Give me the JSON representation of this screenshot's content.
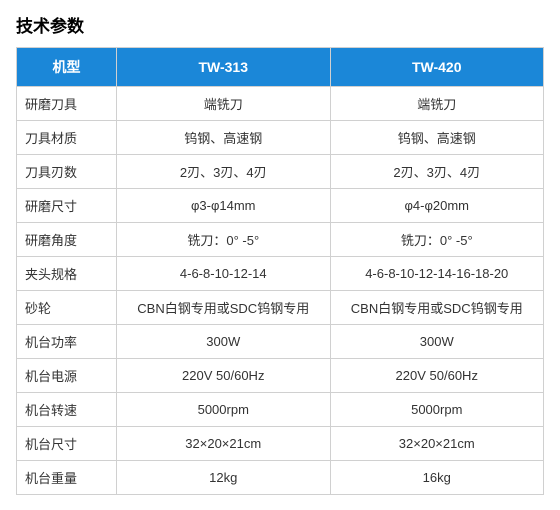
{
  "title": "技术参数",
  "header_bg": "#1b87d8",
  "header_fg": "#ffffff",
  "border_color": "#d0d0d0",
  "columns": [
    "机型",
    "TW-313",
    "TW-420"
  ],
  "rows": [
    {
      "label": "研磨刀具",
      "v1": "端铣刀",
      "v2": "端铣刀"
    },
    {
      "label": "刀具材质",
      "v1": "钨钢、高速钢",
      "v2": "钨钢、高速钢"
    },
    {
      "label": "刀具刃数",
      "v1": "2刃、3刃、4刃",
      "v2": "2刃、3刃、4刃"
    },
    {
      "label": "研磨尺寸",
      "v1": "φ3-φ14mm",
      "v2": "φ4-φ20mm"
    },
    {
      "label": "研磨角度",
      "v1": "铣刀：0° -5°",
      "v2": "铣刀：0° -5°"
    },
    {
      "label": "夹头规格",
      "v1": "4-6-8-10-12-14",
      "v2": "4-6-8-10-12-14-16-18-20"
    },
    {
      "label": "砂轮",
      "v1": "CBN白钢专用或SDC钨钢专用",
      "v2": "CBN白钢专用或SDC钨钢专用"
    },
    {
      "label": "机台功率",
      "v1": "300W",
      "v2": "300W"
    },
    {
      "label": "机台电源",
      "v1": "220V 50/60Hz",
      "v2": "220V 50/60Hz"
    },
    {
      "label": "机台转速",
      "v1": "5000rpm",
      "v2": "5000rpm"
    },
    {
      "label": "机台尺寸",
      "v1": "32×20×21cm",
      "v2": "32×20×21cm"
    },
    {
      "label": "机台重量",
      "v1": "12kg",
      "v2": "16kg"
    }
  ]
}
